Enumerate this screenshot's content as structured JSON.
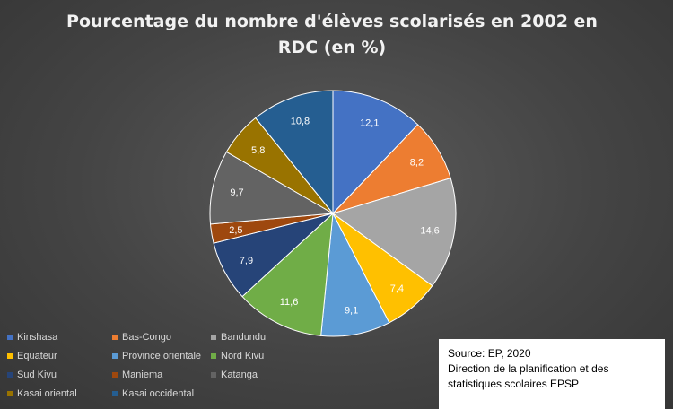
{
  "chart_data": {
    "type": "pie",
    "title": "Pourcentage du nombre d'élèves scolarisés en 2002 en RDC (en %)",
    "categories": [
      "Kinshasa",
      "Bas-Congo",
      "Bandundu",
      "Equateur",
      "Province orientale",
      "Nord Kivu",
      "Sud Kivu",
      "Maniema",
      "Katanga",
      "Kasai oriental",
      "Kasai occidental"
    ],
    "values": [
      12.1,
      8.2,
      14.6,
      7.4,
      9.1,
      11.6,
      7.9,
      2.5,
      9.7,
      5.8,
      10.8
    ],
    "value_labels": [
      "12,1",
      "8,2",
      "14,6",
      "7,4",
      "9,1",
      "11,6",
      "7,9",
      "2,5",
      "9,7",
      "5,8",
      "10,8"
    ],
    "colors": [
      "#4472c4",
      "#ed7d31",
      "#a5a5a5",
      "#ffc000",
      "#5b9bd5",
      "#70ad47",
      "#264478",
      "#9e480e",
      "#636363",
      "#997300",
      "#255e91"
    ],
    "legend_position": "bottom-left"
  },
  "source": {
    "line1": "Source: EP, 2020",
    "line2": "Direction de la planification et des statistiques scolaires EPSP"
  }
}
